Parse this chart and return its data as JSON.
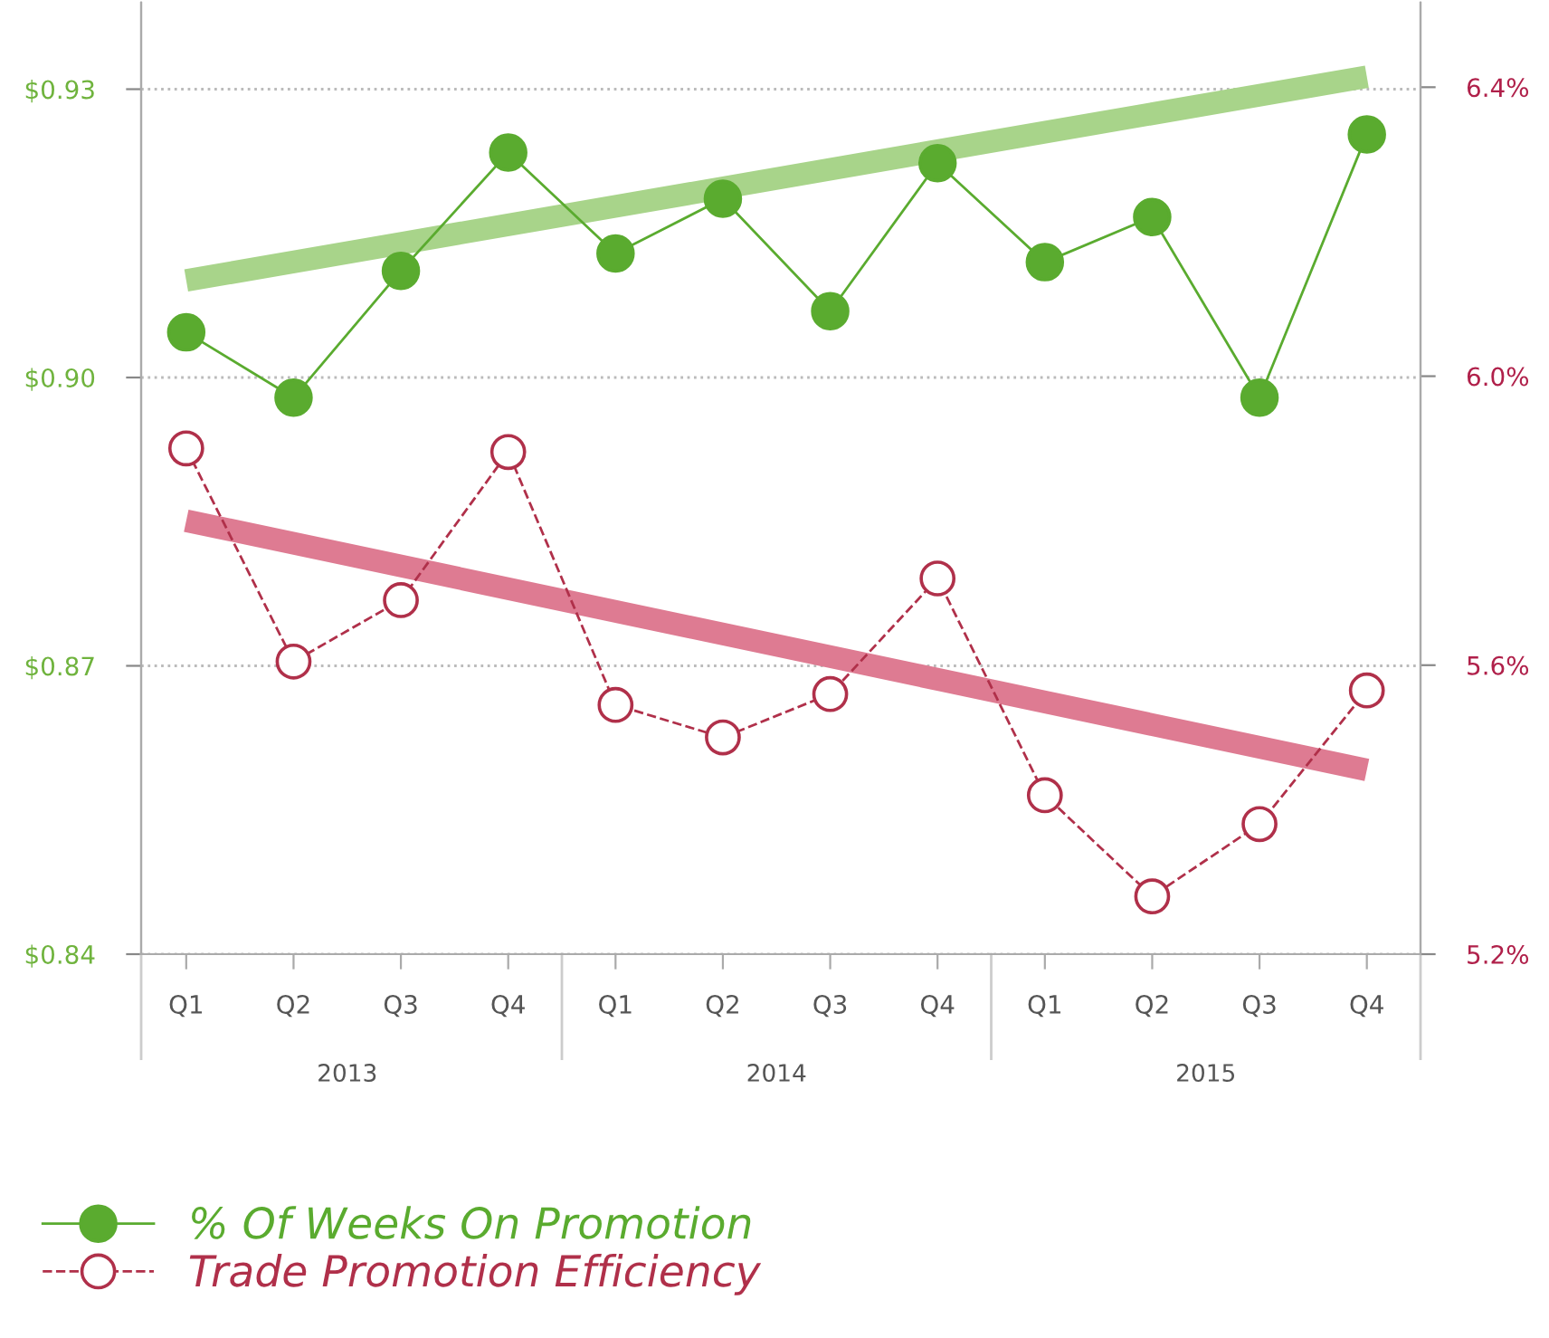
{
  "chart_data": {
    "type": "line",
    "categories": [
      "Q1",
      "Q2",
      "Q3",
      "Q4",
      "Q1",
      "Q2",
      "Q3",
      "Q4",
      "Q1",
      "Q2",
      "Q3",
      "Q4"
    ],
    "series": [
      {
        "name": "% Of Weeks On Promotion",
        "color": "#5aab2f",
        "marker": "circle",
        "line_style": "solid",
        "values": [
          0.9047,
          0.8979,
          0.9111,
          0.9234,
          0.9129,
          0.9186,
          0.9069,
          0.9223,
          0.912,
          0.9167,
          0.8979,
          0.9253
        ]
      },
      {
        "name": "Trade Promotion Efficiency",
        "color": "#b0304a",
        "marker": "circle",
        "line_style": "dashed",
        "axis": "y2",
        "values": [
          5.9,
          5.605,
          5.69,
          5.895,
          5.545,
          5.5,
          5.56,
          5.72,
          5.42,
          5.28,
          5.38,
          5.565
        ]
      },
      {
        "type": "line",
        "color": "#a8d48a",
        "values": [
          0.9101,
          null,
          null,
          null,
          null,
          null,
          null,
          null,
          null,
          null,
          null,
          0.9313
        ]
      },
      {
        "type": "line",
        "color": "#de7b92",
        "axis": "y2",
        "values": [
          5.8,
          null,
          null,
          null,
          null,
          null,
          null,
          null,
          null,
          null,
          null,
          5.455
        ]
      }
    ],
    "ylim": [
      0.84,
      0.939
    ],
    "yticks": [
      {
        "value": 0.84,
        "label": "$0.84"
      },
      {
        "value": 0.87,
        "label": "$0.87"
      },
      {
        "value": 0.9,
        "label": "$0.90"
      },
      {
        "value": 0.93,
        "label": "$0.93"
      }
    ],
    "y2lim": [
      5.2,
      6.517
    ],
    "y2ticks": [
      {
        "value": 5.2,
        "label": "5.2%"
      },
      {
        "value": 5.6,
        "label": "5.6%"
      },
      {
        "value": 6.0,
        "label": "6.0%"
      },
      {
        "value": 6.4,
        "label": "6.4%"
      }
    ],
    "annotations": [
      "2013",
      "2014",
      "2015"
    ],
    "grid": "y",
    "legend": "bottom left"
  }
}
